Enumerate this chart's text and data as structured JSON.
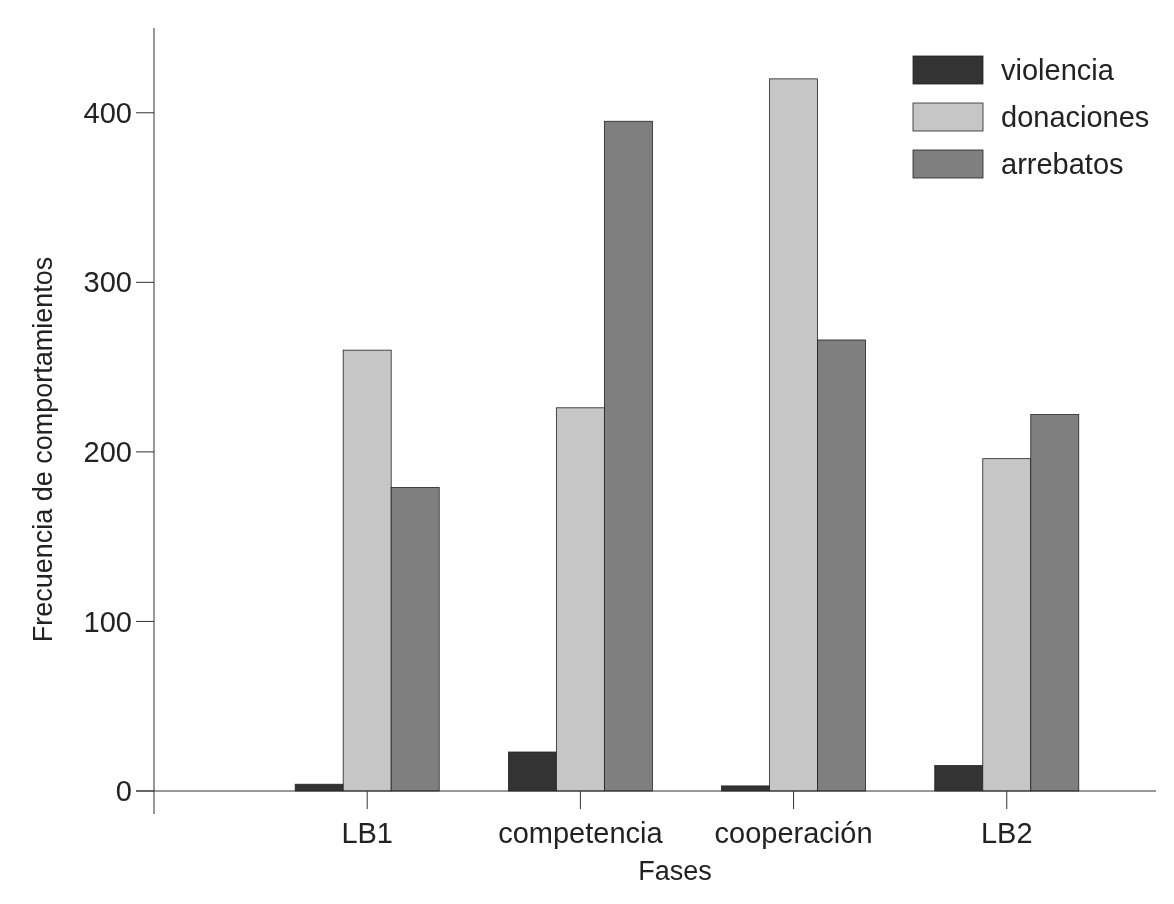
{
  "chart_data": {
    "type": "bar",
    "xlabel": "Fases",
    "ylabel": "Frecuencia de comportamientos",
    "categories": [
      "LB1",
      "competencia",
      "cooperación",
      "LB2"
    ],
    "series": [
      {
        "name": "violencia",
        "color": "#333333",
        "values": [
          4,
          23,
          3,
          15
        ]
      },
      {
        "name": "donaciones",
        "color": "#c6c6c6",
        "values": [
          260,
          226,
          420,
          196
        ]
      },
      {
        "name": "arrebatos",
        "color": "#7f7f7f",
        "values": [
          179,
          395,
          266,
          222
        ]
      }
    ],
    "ylim": [
      0,
      450
    ],
    "yticks": [
      0,
      100,
      200,
      300,
      400
    ],
    "grid": false,
    "legend": "top right"
  }
}
